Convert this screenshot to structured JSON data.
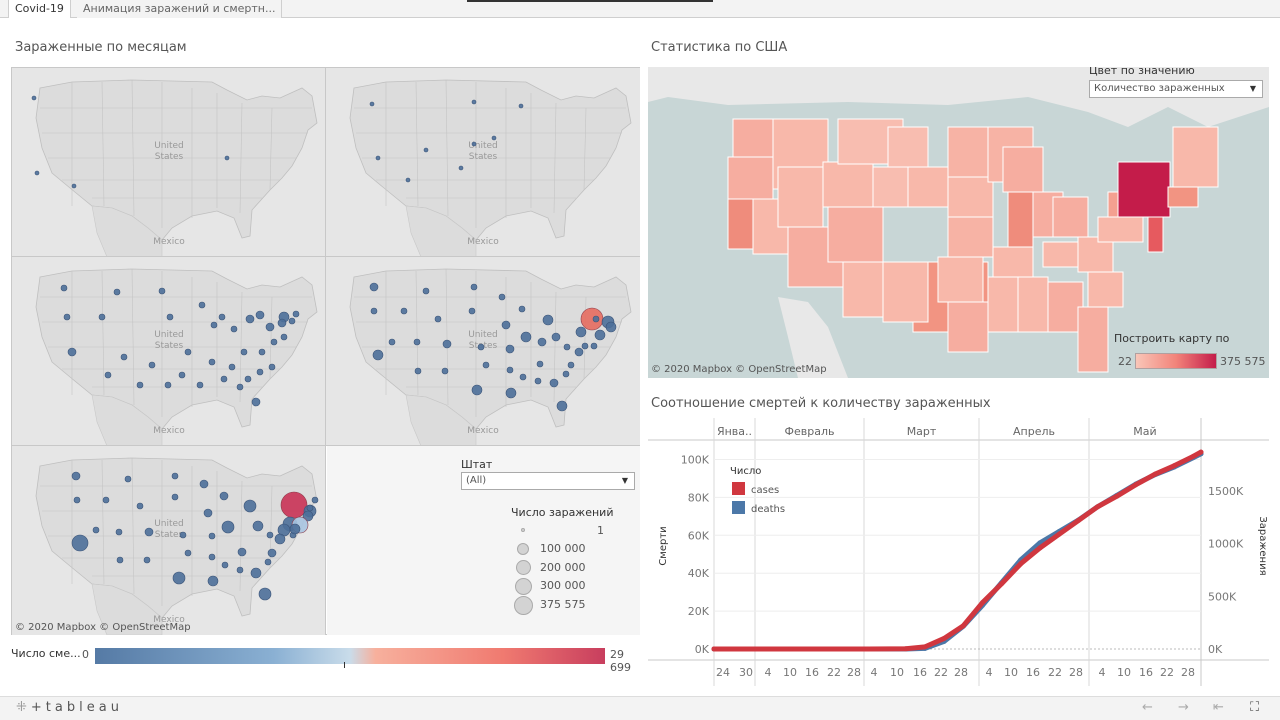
{
  "tabs": [
    {
      "label": "Covid-19",
      "active": true
    },
    {
      "label": "Анимация заражений и смертн...",
      "active": false
    }
  ],
  "left_panel": {
    "title": "Зараженные по месяцам",
    "map_labels": {
      "country": [
        "United",
        "States"
      ],
      "neighbor": "Mexico"
    },
    "credit": "© 2020 Mapbox  © OpenStreetMap",
    "state_filter": {
      "label": "Штат",
      "value": "(All)"
    },
    "size_legend": {
      "title": "Число заражений",
      "entries": [
        "1",
        "100 000",
        "200 000",
        "300 000",
        "375 575"
      ]
    },
    "color_legend": {
      "label": "Число сме...",
      "min": "0",
      "max": "29 699"
    }
  },
  "right_top": {
    "title": "Статистика по США",
    "color_by": {
      "label": "Цвет по значению",
      "value": "Количество зараженных"
    },
    "map_legend": {
      "title": "Построить карту по",
      "min": "22",
      "max": "375 575"
    },
    "credit": "© 2020 Mapbox  © OpenStreetMap"
  },
  "chart_data": {
    "type": "line",
    "title": "Соотношение смертей к количеству зараженных",
    "months": [
      "Янва..",
      "Февраль",
      "Март",
      "Апрель",
      "Май"
    ],
    "x_ticks": [
      "24",
      "30",
      "4",
      "10",
      "16",
      "22",
      "28",
      "4",
      "10",
      "16",
      "22",
      "28",
      "4",
      "10",
      "16",
      "22",
      "28",
      "4",
      "10",
      "16",
      "22",
      "28"
    ],
    "ylabel_left": "Смерти",
    "ylabel_right": "Заражения",
    "y_left_ticks": [
      "0K",
      "20K",
      "40K",
      "60K",
      "80K",
      "100K"
    ],
    "y_left_range": [
      0,
      105000
    ],
    "y_right_ticks": [
      "0K",
      "500K",
      "1000K",
      "1500K"
    ],
    "y_right_range": [
      0,
      1890000
    ],
    "legend": {
      "title": "Число",
      "entries": [
        {
          "name": "cases",
          "color": "#d0373f"
        },
        {
          "name": "deaths",
          "color": "#4c78a8"
        }
      ]
    },
    "x_day_range": [
      0,
      127
    ],
    "series": [
      {
        "name": "cases",
        "axis": "right",
        "color": "#d0373f",
        "x": [
          0,
          20,
          40,
          50,
          55,
          60,
          65,
          70,
          75,
          80,
          85,
          90,
          95,
          100,
          105,
          110,
          115,
          120,
          125,
          127
        ],
        "y": [
          0,
          10,
          60,
          2000,
          20000,
          100000,
          220000,
          440000,
          620000,
          810000,
          960000,
          1090000,
          1220000,
          1350000,
          1450000,
          1560000,
          1660000,
          1740000,
          1830000,
          1870000
        ]
      },
      {
        "name": "deaths",
        "axis": "left",
        "color": "#4c78a8",
        "x": [
          0,
          20,
          40,
          50,
          55,
          60,
          65,
          70,
          75,
          80,
          85,
          90,
          95,
          100,
          105,
          110,
          115,
          120,
          125,
          127
        ],
        "y": [
          0,
          0,
          0,
          10,
          300,
          4000,
          12000,
          23000,
          35000,
          47000,
          56000,
          62000,
          68000,
          75000,
          81000,
          87000,
          92000,
          96000,
          101000,
          103000
        ]
      }
    ]
  },
  "footer": {
    "logo": "+tableau"
  },
  "colors": {
    "accent_red": "#c41c4a",
    "accent_blue": "#4c78a8"
  }
}
